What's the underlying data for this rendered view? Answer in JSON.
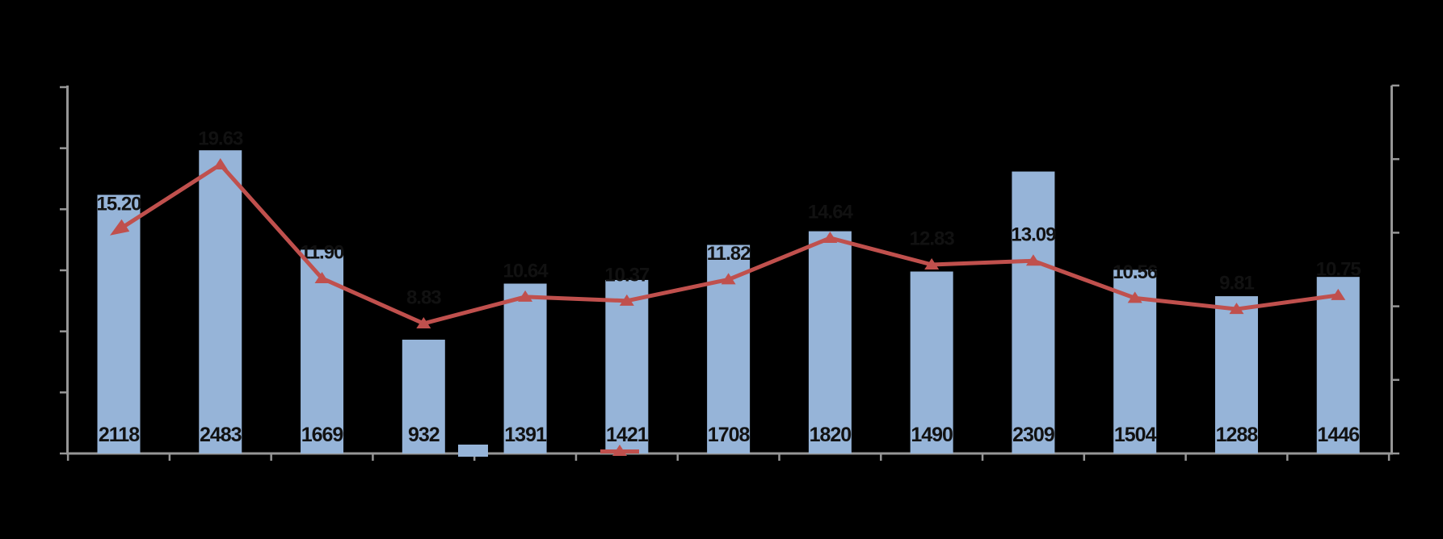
{
  "chart_data": {
    "type": "combo-bar-line",
    "title": "",
    "background": "#000000",
    "grid": false,
    "categories": [
      "",
      "",
      "",
      "",
      "",
      "",
      "",
      "",
      "",
      "",
      "",
      "",
      ""
    ],
    "series": [
      {
        "name": "",
        "type": "bar",
        "axis": "left",
        "color": "#96B4D8",
        "values": [
          2118,
          2483,
          1669,
          932,
          1391,
          1421,
          1708,
          1820,
          1490,
          2309,
          1504,
          1288,
          1446
        ],
        "value_labels": [
          "2118",
          "2483",
          "1669",
          "932",
          "1391",
          "1421",
          "1708",
          "1820",
          "1490",
          "2309",
          "1504",
          "1288",
          "1446"
        ]
      },
      {
        "name": "",
        "type": "line",
        "axis": "right",
        "color": "#C0504D",
        "marker": "triangle",
        "first_point_marker": "arrowhead",
        "values": [
          15.2,
          19.63,
          11.9,
          8.83,
          10.64,
          10.37,
          11.82,
          14.64,
          12.83,
          13.09,
          10.56,
          9.81,
          10.75
        ],
        "value_labels": [
          "15.20",
          "19.63",
          "11.90",
          "8.83",
          "10.64",
          "10.37",
          "11.82",
          "14.64",
          "12.83",
          "13.09",
          "10.56",
          "9.81",
          "10.75"
        ],
        "labels_fully_visible": [
          true,
          false,
          true,
          false,
          false,
          false,
          true,
          false,
          false,
          true,
          true,
          false,
          false
        ]
      }
    ],
    "axes": {
      "left": {
        "min": 0,
        "max": 3000,
        "step": 500,
        "tick_labels_visible": false
      },
      "right": {
        "min": 0,
        "max": 25,
        "step": 5,
        "tick_labels_visible": false
      },
      "x": {
        "tick_labels_visible": false
      }
    },
    "legend": {
      "position": "bottom-center",
      "entries": [
        {
          "swatch": "bar-square",
          "color": "#96B4D8",
          "label": ""
        },
        {
          "swatch": "line-triangle",
          "color": "#C0504D",
          "label": ""
        }
      ]
    },
    "label_color": "#111111",
    "axis_color": "#969696"
  }
}
